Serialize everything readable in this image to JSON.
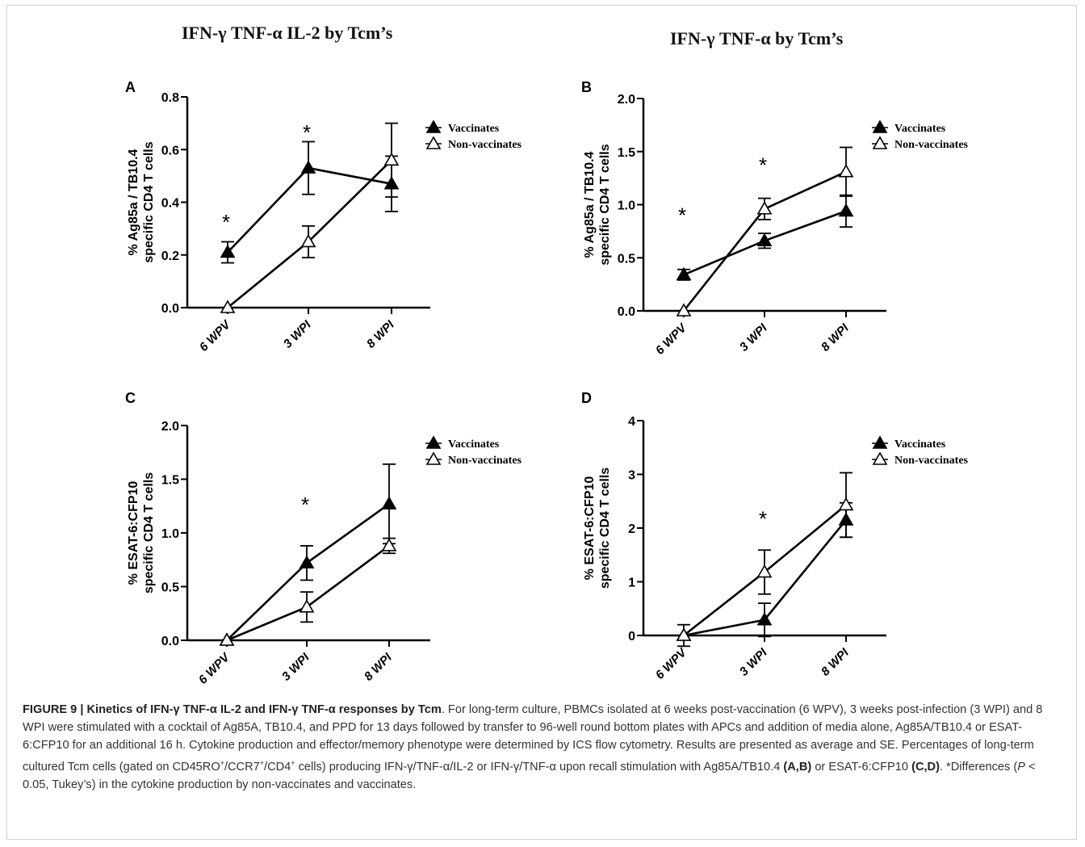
{
  "titles": {
    "left": "IFN-γ TNF-α IL-2 by Tcm’s",
    "right": "IFN-γ TNF-α by Tcm’s"
  },
  "chart_data": [
    {
      "type": "line",
      "panel": "A",
      "ylabel_line1": "% Ag85a / TB10.4",
      "ylabel_line2": "specific CD4 T cells",
      "categories": [
        "6 WPV",
        "3 WPI",
        "8 WPI"
      ],
      "yticks": [
        "0.0",
        "0.2",
        "0.4",
        "0.6",
        "0.8"
      ],
      "ylim": [
        0,
        0.8
      ],
      "legend_position": "top-right",
      "series": [
        {
          "name": "Vaccinates",
          "marker": "filled-triangle",
          "values": [
            0.21,
            0.53,
            0.47
          ],
          "errors": [
            0.04,
            0.1,
            0.105
          ]
        },
        {
          "name": "Non-vaccinates",
          "marker": "open-triangle",
          "values": [
            0.0,
            0.25,
            0.56
          ],
          "errors": [
            0.0,
            0.06,
            0.14
          ]
        }
      ],
      "annotations": [
        {
          "text": "*",
          "x": "6 WPV",
          "y": 0.34
        },
        {
          "text": "*",
          "x": "3 WPI",
          "y": 0.68
        }
      ]
    },
    {
      "type": "line",
      "panel": "B",
      "ylabel_line1": "% Ag85a / TB10.4",
      "ylabel_line2": "specific CD4 T cells",
      "categories": [
        "6 WPV",
        "3 WPI",
        "8 WPI"
      ],
      "yticks": [
        "0.0",
        "0.5",
        "1.0",
        "1.5",
        "2.0"
      ],
      "ylim": [
        0,
        2.0
      ],
      "legend_position": "top-right",
      "series": [
        {
          "name": "Vaccinates",
          "marker": "filled-triangle",
          "values": [
            0.34,
            0.66,
            0.94
          ],
          "errors": [
            0.05,
            0.07,
            0.15
          ]
        },
        {
          "name": "Non-vaccinates",
          "marker": "open-triangle",
          "values": [
            0.0,
            0.96,
            1.31
          ],
          "errors": [
            0.0,
            0.1,
            0.23
          ]
        }
      ],
      "annotations": [
        {
          "text": "*",
          "x": "6 WPV",
          "y": 0.94
        },
        {
          "text": "*",
          "x": "3 WPI",
          "y": 1.41
        }
      ]
    },
    {
      "type": "line",
      "panel": "C",
      "ylabel_line1": "% ESAT-6:CFP10",
      "ylabel_line2": "specific CD4 T cells",
      "categories": [
        "6 WPV",
        "3 WPI",
        "8 WPI"
      ],
      "yticks": [
        "0.0",
        "0.5",
        "1.0",
        "1.5",
        "2.0"
      ],
      "ylim": [
        0,
        2.0
      ],
      "legend_position": "top-right",
      "series": [
        {
          "name": "Vaccinates",
          "marker": "filled-triangle",
          "values": [
            0.0,
            0.72,
            1.27
          ],
          "errors": [
            0.0,
            0.16,
            0.37
          ]
        },
        {
          "name": "Non-vaccinates",
          "marker": "open-triangle",
          "values": [
            0.0,
            0.31,
            0.88
          ],
          "errors": [
            0.0,
            0.14,
            0.07
          ]
        }
      ],
      "annotations": [
        {
          "text": "*",
          "x": "3 WPI",
          "y": 1.3
        }
      ]
    },
    {
      "type": "line",
      "panel": "D",
      "ylabel_line1": "% ESAT-6:CFP10",
      "ylabel_line2": "specific CD4 T cells",
      "categories": [
        "6 WPV",
        "3 WPI",
        "8 WPI"
      ],
      "yticks": [
        "0",
        "1",
        "2",
        "3",
        "4"
      ],
      "ylim": [
        0,
        4
      ],
      "legend_position": "top-right",
      "series": [
        {
          "name": "Vaccinates",
          "marker": "filled-triangle",
          "values": [
            0.0,
            0.29,
            2.15
          ],
          "errors": [
            0.2,
            0.31,
            0.32
          ]
        },
        {
          "name": "Non-vaccinates",
          "marker": "open-triangle",
          "values": [
            0.0,
            1.18,
            2.43
          ],
          "errors": [
            0.0,
            0.41,
            0.6
          ]
        }
      ],
      "annotations": [
        {
          "text": "*",
          "x": "3 WPI",
          "y": 2.25
        }
      ]
    }
  ],
  "caption": {
    "figure_label": "FIGURE 9 | ",
    "title_bold": "Kinetics of IFN-γ TNF-α IL-2 and IFN-γ TNF-α responses by Tcm",
    "text_1": ". For long-term culture, PBMCs isolated at 6 weeks post-vaccination (6 WPV), 3 weeks post-infection (3 WPI) and 8 WPI were stimulated with a cocktail of Ag85A, TB10.4, and PPD for 13 days followed by transfer to 96-well round bottom plates with APCs and addition of media alone, Ag85A/TB10.4 or ESAT-6:CFP10 for an additional 16 h. Cytokine production and effector/memory phenotype were determined by ICS flow cytometry. Results are presented as average and SE. Percentages of long-term cultured Tcm cells (gated on CD45RO",
    "sup_1": "+",
    "text_2": "/CCR7",
    "sup_2": "+",
    "text_3": "/CD4",
    "sup_3": "+",
    "text_4": " cells) producing IFN-γ/TNF-α/IL-2 or IFN-γ/TNF-α upon recall stimulation with Ag85A/TB10.4 ",
    "bold_ab": "(A,B)",
    "text_5": " or ESAT-6:CFP10 ",
    "bold_cd": "(C,D)",
    "text_6": ". *Differences (",
    "italic_p": "P",
    "text_7": " < 0.05, Tukey’s) in the cytokine production by non-vaccinates and vaccinates."
  },
  "colors": {
    "ink": "#000000",
    "caption_text": "#333333",
    "frame": "#cfcfcf"
  }
}
